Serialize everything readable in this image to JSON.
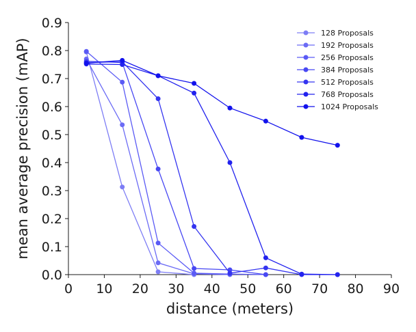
{
  "chart_data": {
    "type": "line",
    "title": "",
    "xlabel": "distance (meters)",
    "ylabel": "mean average precision (mAP)",
    "xlim": [
      0,
      90
    ],
    "ylim": [
      0.0,
      0.9
    ],
    "xticks": [
      0,
      10,
      20,
      30,
      40,
      50,
      60,
      70,
      80,
      90
    ],
    "yticks": [
      0.0,
      0.1,
      0.2,
      0.3,
      0.4,
      0.5,
      0.6,
      0.7,
      0.8,
      0.9
    ],
    "xtick_labels": [
      "0",
      "10",
      "20",
      "30",
      "40",
      "50",
      "60",
      "70",
      "80",
      "90"
    ],
    "ytick_labels": [
      "0.0",
      "0.1",
      "0.2",
      "0.3",
      "0.4",
      "0.5",
      "0.6",
      "0.7",
      "0.8",
      "0.9"
    ],
    "grid": false,
    "legend_position": "top-right",
    "x": [
      5,
      15,
      25,
      35,
      45,
      55,
      65,
      75
    ],
    "series": [
      {
        "name": "128 Proposals",
        "color": "#7d7df5",
        "values": [
          0.795,
          0.313,
          0.01,
          0.0,
          null,
          null,
          null,
          null
        ]
      },
      {
        "name": "192 Proposals",
        "color": "#6b6bf5",
        "values": [
          0.77,
          0.535,
          0.042,
          0.003,
          0.0,
          null,
          null,
          null
        ]
      },
      {
        "name": "256 Proposals",
        "color": "#5a5af5",
        "values": [
          0.797,
          0.687,
          0.113,
          0.005,
          0.002,
          0.0,
          null,
          null
        ]
      },
      {
        "name": "384 Proposals",
        "color": "#4848f3",
        "values": [
          0.762,
          0.757,
          0.377,
          0.022,
          0.017,
          0.0,
          null,
          null
        ]
      },
      {
        "name": "512 Proposals",
        "color": "#3434f0",
        "values": [
          0.757,
          0.76,
          0.628,
          0.172,
          0.005,
          0.024,
          0.0,
          0.0
        ]
      },
      {
        "name": "768 Proposals",
        "color": "#2222ee",
        "values": [
          0.752,
          0.75,
          0.71,
          0.648,
          0.4,
          0.06,
          0.002,
          0.0
        ]
      },
      {
        "name": "1024 Proposals",
        "color": "#1212ec",
        "values": [
          0.755,
          0.765,
          0.71,
          0.683,
          0.595,
          0.548,
          0.49,
          0.462
        ]
      }
    ]
  }
}
